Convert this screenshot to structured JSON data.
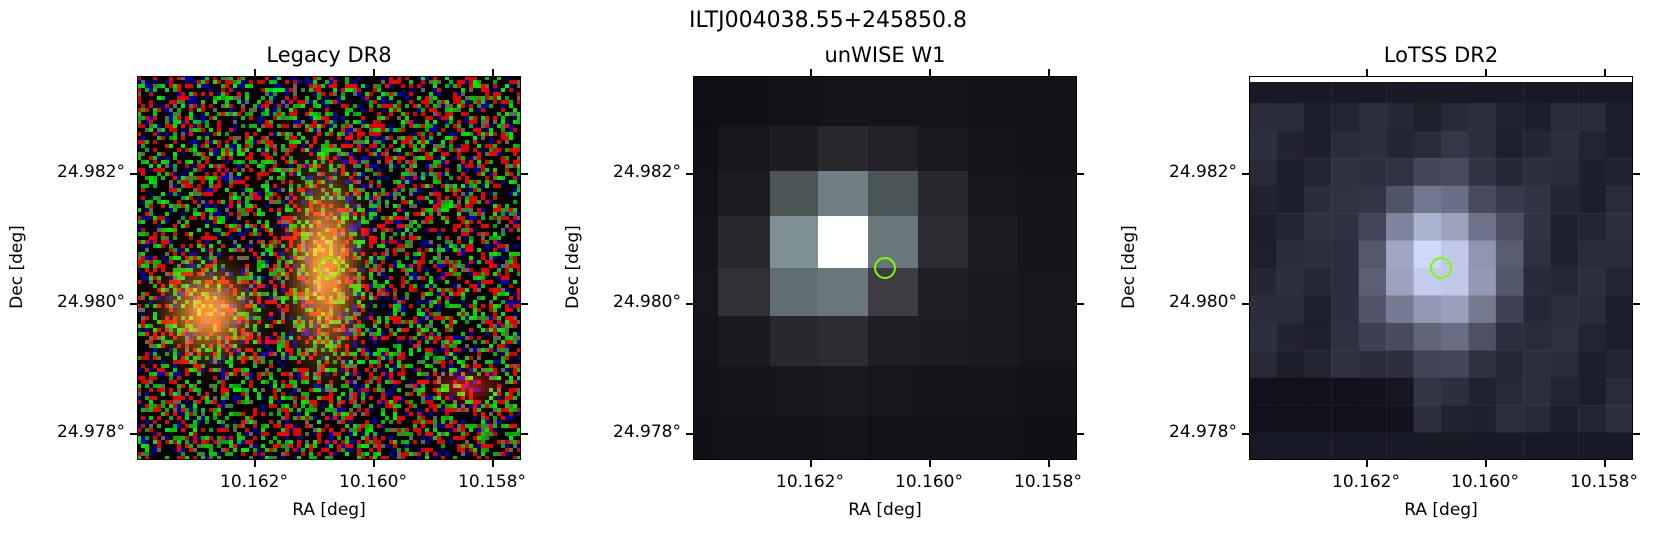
{
  "figure": {
    "title": "ILTJ004038.55+245850.8"
  },
  "panels": [
    {
      "title": "Legacy DR8",
      "xlabel": "RA [deg]",
      "ylabel": "Dec [deg]",
      "xticks": [
        "10.162°",
        "10.160°",
        "10.158°"
      ],
      "yticks": [
        "24.982°",
        "24.980°",
        "24.978°"
      ],
      "marker_color": "#7CFC00"
    },
    {
      "title": "unWISE W1",
      "xlabel": "RA [deg]",
      "ylabel": "Dec [deg]",
      "xticks": [
        "10.162°",
        "10.160°",
        "10.158°"
      ],
      "yticks": [
        "24.982°",
        "24.980°",
        "24.978°"
      ],
      "marker_color": "#7CFC00"
    },
    {
      "title": "LoTSS DR2",
      "xlabel": "RA [deg]",
      "ylabel": "Dec [deg]",
      "xticks": [
        "10.162°",
        "10.160°",
        "10.158°"
      ],
      "yticks": [
        "24.982°",
        "24.980°",
        "24.978°"
      ],
      "marker_color": "#7CFC00"
    }
  ]
}
